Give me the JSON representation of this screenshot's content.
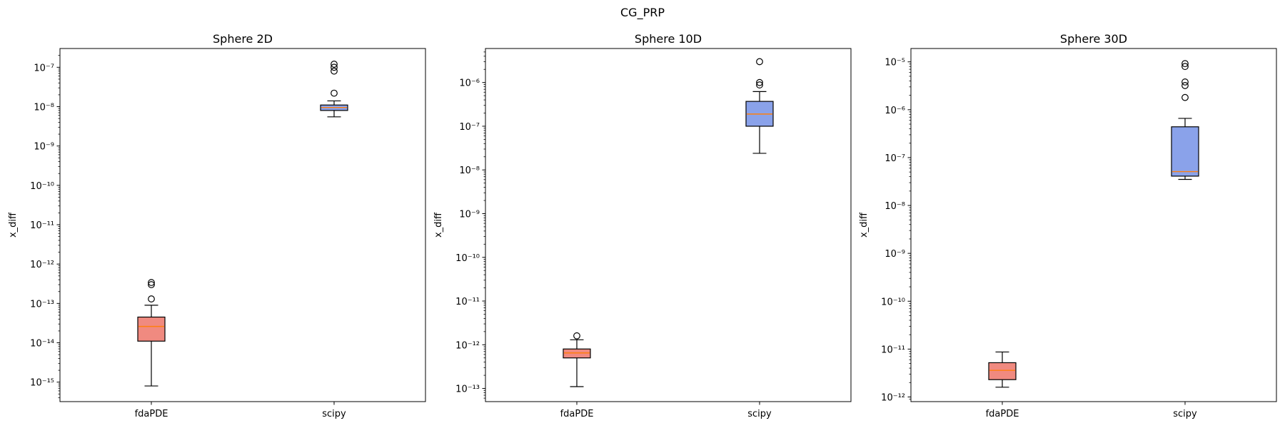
{
  "figure": {
    "suptitle": "CG_PRP"
  },
  "colors": {
    "fdaPDE_box": "#f08a80",
    "scipy_box": "#8aa2ea",
    "median": "#ff7f0e",
    "frame": "#000000"
  },
  "chart_data": [
    {
      "type": "boxplot",
      "title": "Sphere 2D",
      "xlabel": "",
      "ylabel": "x_diff",
      "yscale": "log",
      "ylim": [
        3.2e-16,
        3e-07
      ],
      "ytick_exponents": [
        -15,
        -14,
        -13,
        -12,
        -11,
        -10,
        -9,
        -8,
        -7
      ],
      "categories": [
        "fdaPDE",
        "scipy"
      ],
      "boxes": [
        {
          "name": "fdaPDE",
          "whislo": 8e-16,
          "q1": 1.1e-14,
          "med": 2.6e-14,
          "q3": 4.5e-14,
          "whishi": 9e-14,
          "fliers": [
            1.3e-13,
            3e-13,
            3.4e-13
          ]
        },
        {
          "name": "scipy",
          "whislo": 5.5e-09,
          "q1": 8e-09,
          "med": 9.5e-09,
          "q3": 1.1e-08,
          "whishi": 1.4e-08,
          "fliers": [
            2.2e-08,
            8e-08,
            1e-07,
            1.2e-07
          ]
        }
      ]
    },
    {
      "type": "boxplot",
      "title": "Sphere 10D",
      "xlabel": "",
      "ylabel": "x_diff",
      "yscale": "log",
      "ylim": [
        5e-14,
        6e-06
      ],
      "ytick_exponents": [
        -13,
        -12,
        -11,
        -10,
        -9,
        -8,
        -7,
        -6
      ],
      "categories": [
        "fdaPDE",
        "scipy"
      ],
      "boxes": [
        {
          "name": "fdaPDE",
          "whislo": 1.1e-13,
          "q1": 5e-13,
          "med": 6.5e-13,
          "q3": 8e-13,
          "whishi": 1.3e-12,
          "fliers": [
            1.6e-12
          ]
        },
        {
          "name": "scipy",
          "whislo": 2.4e-08,
          "q1": 1e-07,
          "med": 1.9e-07,
          "q3": 3.7e-07,
          "whishi": 6.2e-07,
          "fliers": [
            8.8e-07,
            1e-06,
            3e-06
          ]
        }
      ]
    },
    {
      "type": "boxplot",
      "title": "Sphere 30D",
      "xlabel": "",
      "ylabel": "x_diff",
      "yscale": "log",
      "ylim": [
        8e-13,
        1.9e-05
      ],
      "ytick_exponents": [
        -12,
        -11,
        -10,
        -9,
        -8,
        -7,
        -6,
        -5
      ],
      "categories": [
        "fdaPDE",
        "scipy"
      ],
      "boxes": [
        {
          "name": "fdaPDE",
          "whislo": 1.6e-12,
          "q1": 2.3e-12,
          "med": 3.6e-12,
          "q3": 5.2e-12,
          "whishi": 8.7e-12,
          "fliers": []
        },
        {
          "name": "scipy",
          "whislo": 3.5e-08,
          "q1": 4.1e-08,
          "med": 5.1e-08,
          "q3": 4.4e-07,
          "whishi": 6.6e-07,
          "fliers": [
            1.8e-06,
            3.2e-06,
            3.8e-06,
            8e-06,
            9.2e-06
          ]
        }
      ]
    }
  ]
}
